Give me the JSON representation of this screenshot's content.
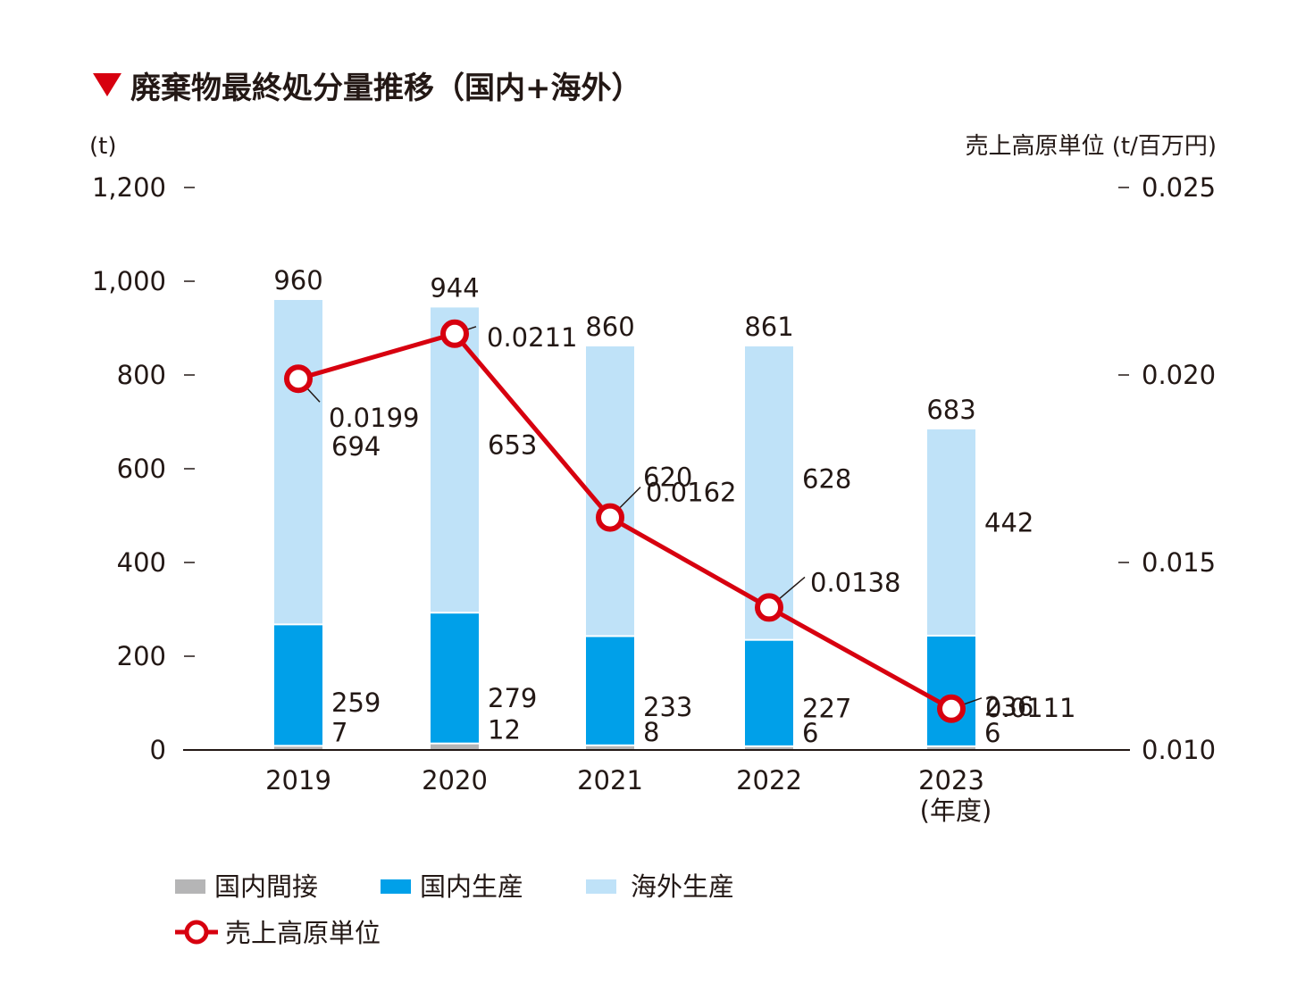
{
  "chart_data": {
    "type": "bar",
    "stacked": true,
    "title": "廃棄物最終処分量推移（国内+海外）",
    "y_left_label": "(t)",
    "y_right_label": "売上高原単位 (t/百万円)",
    "x_unit_label": "(年度)",
    "categories": [
      "2019",
      "2020",
      "2021",
      "2022",
      "2023"
    ],
    "ylim": [
      0,
      1200
    ],
    "y_ticks": [
      0,
      200,
      400,
      600,
      800,
      1000,
      1200
    ],
    "y_tick_labels": [
      "0",
      "200",
      "400",
      "600",
      "800",
      "1,000",
      "1,200"
    ],
    "y2lim": [
      0.01,
      0.025
    ],
    "y2_ticks": [
      0.01,
      0.015,
      0.02,
      0.025
    ],
    "y2_tick_labels": [
      "0.010",
      "0.015",
      "0.020",
      "0.025"
    ],
    "series": [
      {
        "name": "国内間接",
        "color": "#b5b5b6",
        "values": [
          7,
          12,
          8,
          6,
          6
        ],
        "labels": [
          "7",
          "12",
          "8",
          "6",
          "6"
        ]
      },
      {
        "name": "国内生産",
        "color": "#00a0e9",
        "values": [
          259,
          279,
          233,
          227,
          236
        ],
        "labels": [
          "259",
          "279",
          "233",
          "227",
          "236"
        ]
      },
      {
        "name": "海外生産",
        "color": "#bfe2f8",
        "values": [
          694,
          653,
          620,
          628,
          442
        ],
        "labels": [
          "694",
          "653",
          "620",
          "628",
          "442"
        ]
      }
    ],
    "totals": [
      "960",
      "944",
      "860",
      "861",
      "683"
    ],
    "line": {
      "name": "売上高原単位",
      "color": "#d7000f",
      "axis": "right",
      "values": [
        0.0199,
        0.0211,
        0.0162,
        0.0138,
        0.0111
      ],
      "labels": [
        "0.0199",
        "0.0211",
        "0.0162",
        "0.0138",
        "0.0111"
      ]
    }
  }
}
